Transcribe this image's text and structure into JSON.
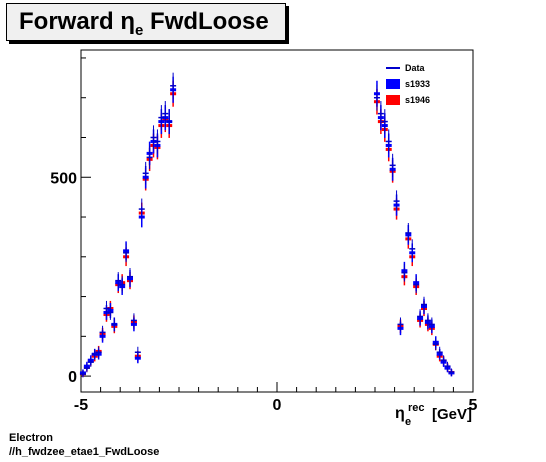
{
  "title": {
    "main": "Forward η",
    "sub": "e",
    "tail": " FwdLoose"
  },
  "footer": {
    "line1": "Electron",
    "line2": "//h_fwdzee_etae1_FwdLoose"
  },
  "colors": {
    "data": "#0000cc",
    "s1933": "#0000ff",
    "s1946": "#ff0000",
    "axis": "#000000"
  },
  "chart_data": {
    "type": "scatter",
    "title": "Forward η_e FwdLoose",
    "xlabel": {
      "symbol": "η",
      "sub": "e",
      "sup": "rec",
      "unit": "[GeV]"
    },
    "ylabel": "",
    "xlim": [
      -5,
      5
    ],
    "ylim": [
      -40,
      820
    ],
    "x_tick_labels": [
      "-5",
      "0",
      "5"
    ],
    "y_tick_labels": [
      "0",
      "500"
    ],
    "legend": [
      {
        "name": "Data",
        "style": "line"
      },
      {
        "name": "s1933",
        "style": "box"
      },
      {
        "name": "s1946",
        "style": "box"
      }
    ],
    "legend_position": "top-right",
    "x": [
      -4.95,
      -4.85,
      -4.75,
      -4.65,
      -4.55,
      -4.45,
      -4.35,
      -4.25,
      -4.15,
      -4.05,
      -3.95,
      -3.85,
      -3.75,
      -3.65,
      -3.55,
      -3.45,
      -3.35,
      -3.25,
      -3.15,
      -3.05,
      -2.95,
      -2.85,
      -2.75,
      -2.65,
      -2.55,
      2.55,
      2.65,
      2.75,
      2.85,
      2.95,
      3.05,
      3.15,
      3.25,
      3.35,
      3.45,
      3.55,
      3.65,
      3.75,
      3.85,
      3.95,
      4.05,
      4.15,
      4.25,
      4.35,
      4.45,
      4.55,
      4.65,
      4.75,
      4.85
    ],
    "series": [
      {
        "name": "Data",
        "values": [
          5,
          20,
          35,
          55,
          60,
          110,
          170,
          160,
          130,
          240,
          230,
          310,
          250,
          140,
          60,
          420,
          510,
          550,
          600,
          590,
          650,
          660,
          640,
          730,
          0,
          700,
          660,
          640,
          590,
          530,
          440,
          130,
          260,
          360,
          320,
          230,
          150,
          180,
          140,
          130,
          80,
          60,
          40,
          25,
          10,
          0,
          0,
          0,
          0
        ]
      },
      {
        "name": "s1933",
        "values": [
          8,
          25,
          40,
          55,
          55,
          100,
          160,
          165,
          130,
          235,
          225,
          315,
          245,
          130,
          45,
          400,
          500,
          560,
          590,
          580,
          640,
          650,
          640,
          720,
          0,
          710,
          650,
          630,
          580,
          520,
          430,
          120,
          265,
          355,
          310,
          235,
          145,
          175,
          135,
          125,
          85,
          55,
          35,
          20,
          8,
          0,
          0,
          0,
          0
        ]
      },
      {
        "name": "s1946",
        "values": [
          6,
          22,
          38,
          50,
          62,
          105,
          155,
          170,
          125,
          230,
          235,
          300,
          240,
          135,
          50,
          410,
          495,
          545,
          580,
          575,
          630,
          645,
          630,
          710,
          0,
          690,
          640,
          620,
          570,
          515,
          420,
          125,
          250,
          345,
          300,
          225,
          140,
          170,
          130,
          120,
          80,
          50,
          38,
          22,
          9,
          0,
          0,
          0,
          0
        ]
      }
    ]
  }
}
